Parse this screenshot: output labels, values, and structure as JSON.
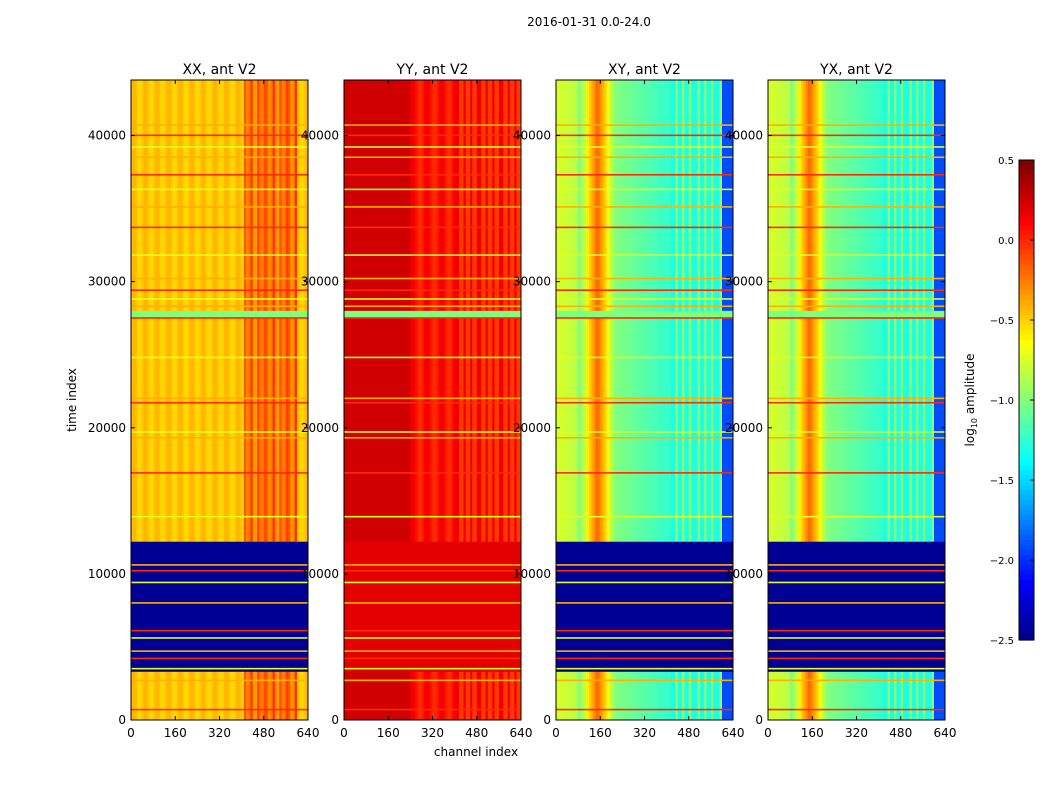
{
  "chart_data": {
    "type": "heatmap",
    "title": "2016-01-31 0.0-24.0",
    "xlabel": "channel index",
    "ylabel": "time index",
    "xlim": [
      0,
      640
    ],
    "ylim": [
      0,
      43800
    ],
    "x_ticks": [
      "0",
      "160",
      "320",
      "480",
      "640"
    ],
    "y_ticks": [
      "0",
      "10000",
      "20000",
      "30000",
      "40000"
    ],
    "colorbar": {
      "label": "log10 amplitude",
      "label_main": "log",
      "label_sub": "10",
      "label_rest": " amplitude",
      "range": [
        -2.5,
        0.5
      ],
      "ticks": [
        "0.5",
        "0.0",
        "−0.5",
        "−1.0",
        "−1.5",
        "−2.0",
        "−2.5"
      ],
      "colormap": "jet"
    },
    "panels": [
      {
        "title": "XX, ant V2",
        "kind": "XX"
      },
      {
        "title": "YY, ant V2",
        "kind": "YY"
      },
      {
        "title": "XY, ant V2",
        "kind": "XY"
      },
      {
        "title": "YX, ant V2",
        "kind": "YX"
      }
    ],
    "flag_rows": [
      700,
      2700,
      3500,
      4200,
      4700,
      5600,
      6100,
      8000,
      9400,
      10200,
      10600,
      13900,
      16900,
      19300,
      19700,
      21700,
      22000,
      24800,
      27500,
      28300,
      28800,
      29400,
      30200,
      31800,
      33700,
      35100,
      36300,
      37300,
      38500,
      39200,
      40000,
      40700
    ],
    "flag_band": [
      27500,
      28000
    ],
    "dead_block": [
      3300,
      12200
    ]
  }
}
